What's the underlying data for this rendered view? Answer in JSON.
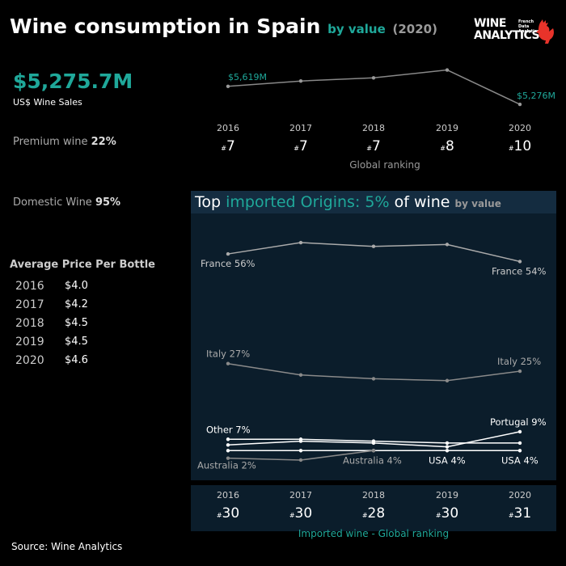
{
  "title": {
    "main": "Wine consumption in Spain",
    "sub": "by value",
    "year": "(2020)"
  },
  "logo": {
    "line1": "WINE",
    "line2": "ANALYTICS",
    "small1": "French",
    "small2": "Data",
    "small3": "Analytics"
  },
  "kpi": {
    "sales_value": "$5,275.7M",
    "sales_label": "US$ Wine Sales",
    "premium_label": "Premium wine",
    "premium_value": "22%",
    "domestic_label": "Domestic Wine",
    "domestic_value": "95%"
  },
  "avg_price": {
    "title": "Average Price Per Bottle",
    "rows": [
      {
        "year": "2016",
        "price": "$4.0"
      },
      {
        "year": "2017",
        "price": "$4.2"
      },
      {
        "year": "2018",
        "price": "$4.5"
      },
      {
        "year": "2019",
        "price": "$4.5"
      },
      {
        "year": "2020",
        "price": "$4.6"
      }
    ]
  },
  "global_ranking": {
    "label": "Global ranking",
    "hash": "#",
    "years": [
      "2016",
      "2017",
      "2018",
      "2019",
      "2020"
    ],
    "ranks": [
      "7",
      "7",
      "7",
      "8",
      "10"
    ]
  },
  "imports_panel": {
    "title_pre": "Top ",
    "title_hl": "imported Origins: 5%",
    "title_post": " of wine ",
    "title_by": "by value"
  },
  "imported_ranking": {
    "label": "Imported wine - Global ranking",
    "hash": "#",
    "years": [
      "2016",
      "2017",
      "2018",
      "2019",
      "2020"
    ],
    "ranks": [
      "30",
      "30",
      "28",
      "30",
      "31"
    ]
  },
  "source": "Source: Wine Analytics",
  "colors": {
    "accent": "#1fa89a",
    "panel": "#0b1d2b",
    "line_gray": "#888888",
    "line_white": "#ffffff"
  },
  "chart_data": [
    {
      "type": "line",
      "x": [
        "2016",
        "2017",
        "2018",
        "2019",
        "2020"
      ],
      "series": [
        {
          "values": [
            5619,
            5720,
            5780,
            5930,
            5276
          ]
        }
      ],
      "point_labels": [
        {
          "index": 0,
          "text": "$5,619M"
        },
        {
          "index": 4,
          "text": "$5,276M"
        }
      ],
      "ylim": [
        5200,
        6000
      ]
    },
    {
      "type": "line",
      "x": [
        "2016",
        "2017",
        "2018",
        "2019",
        "2020"
      ],
      "series": [
        {
          "name": "France",
          "values": [
            56,
            59,
            58,
            58.5,
            54
          ],
          "color": "#aaaaaa"
        },
        {
          "name": "Italy",
          "values": [
            27,
            24,
            23,
            22.5,
            25
          ],
          "color": "#8a8a8a"
        },
        {
          "name": "Other",
          "values": [
            7,
            7,
            6.5,
            6,
            6
          ],
          "color": "#ffffff"
        },
        {
          "name": "Portugal",
          "values": [
            5.5,
            6.5,
            6,
            5,
            9
          ],
          "color": "#ffffff"
        },
        {
          "name": "USA",
          "values": [
            4,
            4,
            4,
            4,
            4
          ],
          "color": "#ffffff"
        },
        {
          "name": "Australia",
          "values": [
            2,
            1.5,
            4,
            null,
            null
          ],
          "color": "#888888"
        }
      ],
      "labels": [
        {
          "series": "France",
          "index": 0,
          "text": "France 56%"
        },
        {
          "series": "France",
          "index": 4,
          "text": "France 54%"
        },
        {
          "series": "Italy",
          "index": 0,
          "text": "Italy 27%"
        },
        {
          "series": "Italy",
          "index": 4,
          "text": "Italy 25%"
        },
        {
          "series": "Other",
          "index": 0,
          "text": "Other 7%"
        },
        {
          "series": "Portugal",
          "index": 4,
          "text": "Portugal 9%"
        },
        {
          "series": "Australia",
          "index": 0,
          "text": "Australia 2%"
        },
        {
          "series": "Australia",
          "index": 2,
          "text": "Australia 4%"
        },
        {
          "series": "USA",
          "index": 3,
          "text": "USA 4%"
        },
        {
          "series": "USA",
          "index": 4,
          "text": "USA 4%"
        }
      ],
      "ylim": [
        0,
        62
      ]
    }
  ]
}
